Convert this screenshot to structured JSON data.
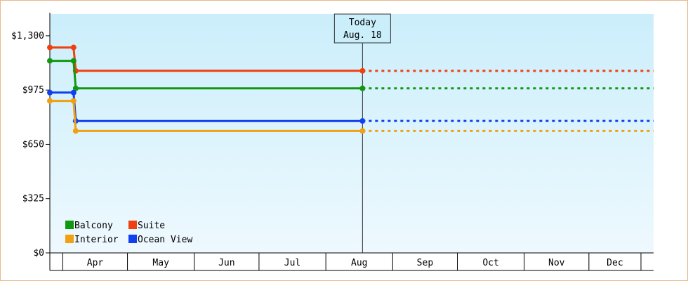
{
  "chart_data": {
    "type": "line",
    "step": true,
    "y_ticks": [
      {
        "value": 0,
        "label": "$0"
      },
      {
        "value": 325,
        "label": "$325"
      },
      {
        "value": 650,
        "label": "$650"
      },
      {
        "value": 975,
        "label": "$975"
      },
      {
        "value": 1300,
        "label": "$1,300"
      }
    ],
    "ylim": [
      0,
      1430
    ],
    "months": [
      "Apr",
      "May",
      "Jun",
      "Jul",
      "Aug",
      "Sep",
      "Oct",
      "Nov",
      "Dec"
    ],
    "today": {
      "line1": "Today",
      "line2": "Aug. 18",
      "date": "2024-08-18"
    },
    "x_range": {
      "start": "2024-03-26",
      "end": "2024-12-31"
    },
    "series": [
      {
        "name": "Suite",
        "color": "#f04010",
        "points": [
          [
            "2024-03-26",
            1230
          ],
          [
            "2024-04-06",
            1230
          ],
          [
            "2024-04-07",
            1090
          ],
          [
            "2024-08-18",
            1090
          ]
        ],
        "forecast": 1090
      },
      {
        "name": "Balcony",
        "color": "#109910",
        "points": [
          [
            "2024-03-26",
            1150
          ],
          [
            "2024-04-06",
            1150
          ],
          [
            "2024-04-07",
            985
          ],
          [
            "2024-08-18",
            985
          ]
        ],
        "forecast": 985
      },
      {
        "name": "Ocean View",
        "color": "#1040f0",
        "points": [
          [
            "2024-03-26",
            960
          ],
          [
            "2024-04-06",
            960
          ],
          [
            "2024-04-07",
            790
          ],
          [
            "2024-08-18",
            790
          ]
        ],
        "forecast": 790
      },
      {
        "name": "Interior",
        "color": "#f0a010",
        "points": [
          [
            "2024-03-26",
            910
          ],
          [
            "2024-04-06",
            910
          ],
          [
            "2024-04-07",
            730
          ],
          [
            "2024-08-18",
            730
          ]
        ],
        "forecast": 730
      }
    ],
    "legend": [
      {
        "name": "Balcony",
        "color": "#109910"
      },
      {
        "name": "Suite",
        "color": "#f04010"
      },
      {
        "name": "Interior",
        "color": "#f0a010"
      },
      {
        "name": "Ocean View",
        "color": "#1040f0"
      }
    ]
  }
}
